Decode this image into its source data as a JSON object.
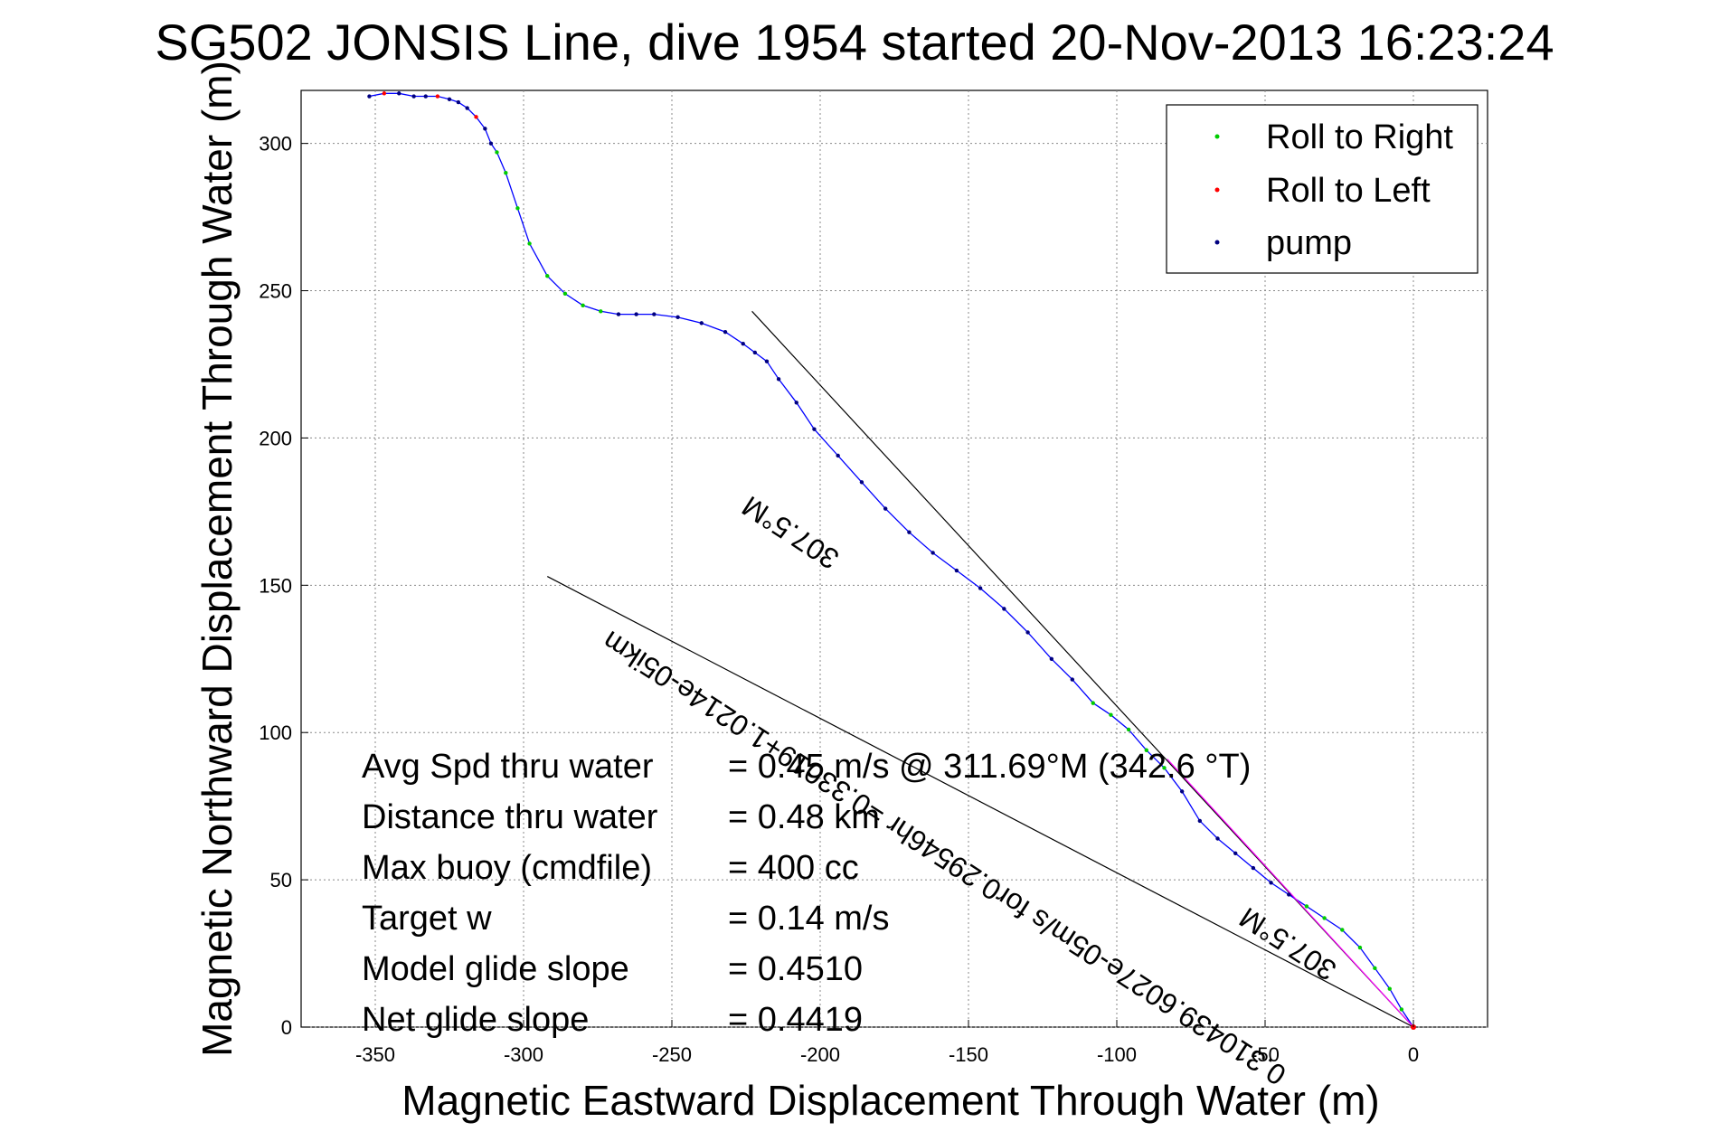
{
  "chart_data": {
    "type": "line",
    "title": "SG502 JONSIS Line, dive 1954 started 20-Nov-2013 16:23:24",
    "xlabel": "Magnetic Eastward Displacement Through Water (m)",
    "ylabel": "Magnetic Northward Displacement Through Water (m)",
    "xlim": [
      -375,
      25
    ],
    "ylim": [
      0,
      318
    ],
    "xticks": [
      "-350",
      "-300",
      "-250",
      "-200",
      "-150",
      "-100",
      "-50",
      "0"
    ],
    "yticks": [
      "0",
      "50",
      "100",
      "150",
      "200",
      "250",
      "300"
    ],
    "grid": true,
    "legend_position": "top-right",
    "legend": [
      {
        "label": "Roll to Right",
        "color": "#00cc00"
      },
      {
        "label": "Roll to Left",
        "color": "#ff0000"
      },
      {
        "label": "pump",
        "color": "#000080"
      }
    ],
    "track_color": "#0000ff",
    "track": {
      "x": [
        0,
        -4,
        -8,
        -13,
        -18,
        -24,
        -30,
        -36,
        -42,
        -48,
        -54,
        -60,
        -66,
        -72,
        -78,
        -84,
        -90,
        -96,
        -102,
        -108,
        -115,
        -122,
        -130,
        -138,
        -146,
        -154,
        -162,
        -170,
        -178,
        -186,
        -194,
        -202,
        -208,
        -214,
        -218,
        -222,
        -226,
        -232,
        -240,
        -248,
        -256,
        -262,
        -268,
        -274,
        -280,
        -286,
        -292,
        -298,
        -302,
        -306,
        -309,
        -311,
        -313,
        -316,
        -319,
        -322,
        -325,
        -329,
        -333,
        -337,
        -342,
        -347,
        -352
      ],
      "y": [
        0,
        6,
        13,
        20,
        27,
        33,
        37,
        41,
        45,
        49,
        54,
        59,
        64,
        70,
        80,
        88,
        94,
        101,
        106,
        110,
        118,
        125,
        134,
        142,
        149,
        155,
        161,
        168,
        176,
        185,
        194,
        203,
        212,
        220,
        226,
        229,
        232,
        236,
        239,
        241,
        242,
        242,
        242,
        243,
        245,
        249,
        255,
        266,
        278,
        290,
        297,
        300,
        305,
        309,
        312,
        314,
        315,
        316,
        316,
        316,
        317,
        317,
        316
      ]
    },
    "reference_lines": [
      {
        "x": [
          0,
          -223
        ],
        "y": [
          0,
          243
        ]
      },
      {
        "x": [
          0,
          -292
        ],
        "y": [
          0,
          153
        ]
      }
    ],
    "fit_line": {
      "x": [
        0,
        -83
      ],
      "y": [
        0,
        91
      ],
      "color": "#ff00ff"
    },
    "annotations": [
      "0.310439.6027e-05m/s for0.29546hr =0.33019+1.0214e-05ikm",
      "307.5°M",
      "307.5°M"
    ],
    "stats": [
      {
        "label": "Avg Spd thru water",
        "value": "=  0.45 m/s @ 311.69°M (342.6 °T)"
      },
      {
        "label": "Distance thru water",
        "value": "=  0.48 km"
      },
      {
        "label": "Max buoy (cmdfile)",
        "value": "= 400 cc"
      },
      {
        "label": "Target w",
        "value": "= 0.14 m/s"
      },
      {
        "label": "Model glide slope",
        "value": "= 0.4510"
      },
      {
        "label": "Net glide slope",
        "value": "= 0.4419"
      }
    ]
  }
}
